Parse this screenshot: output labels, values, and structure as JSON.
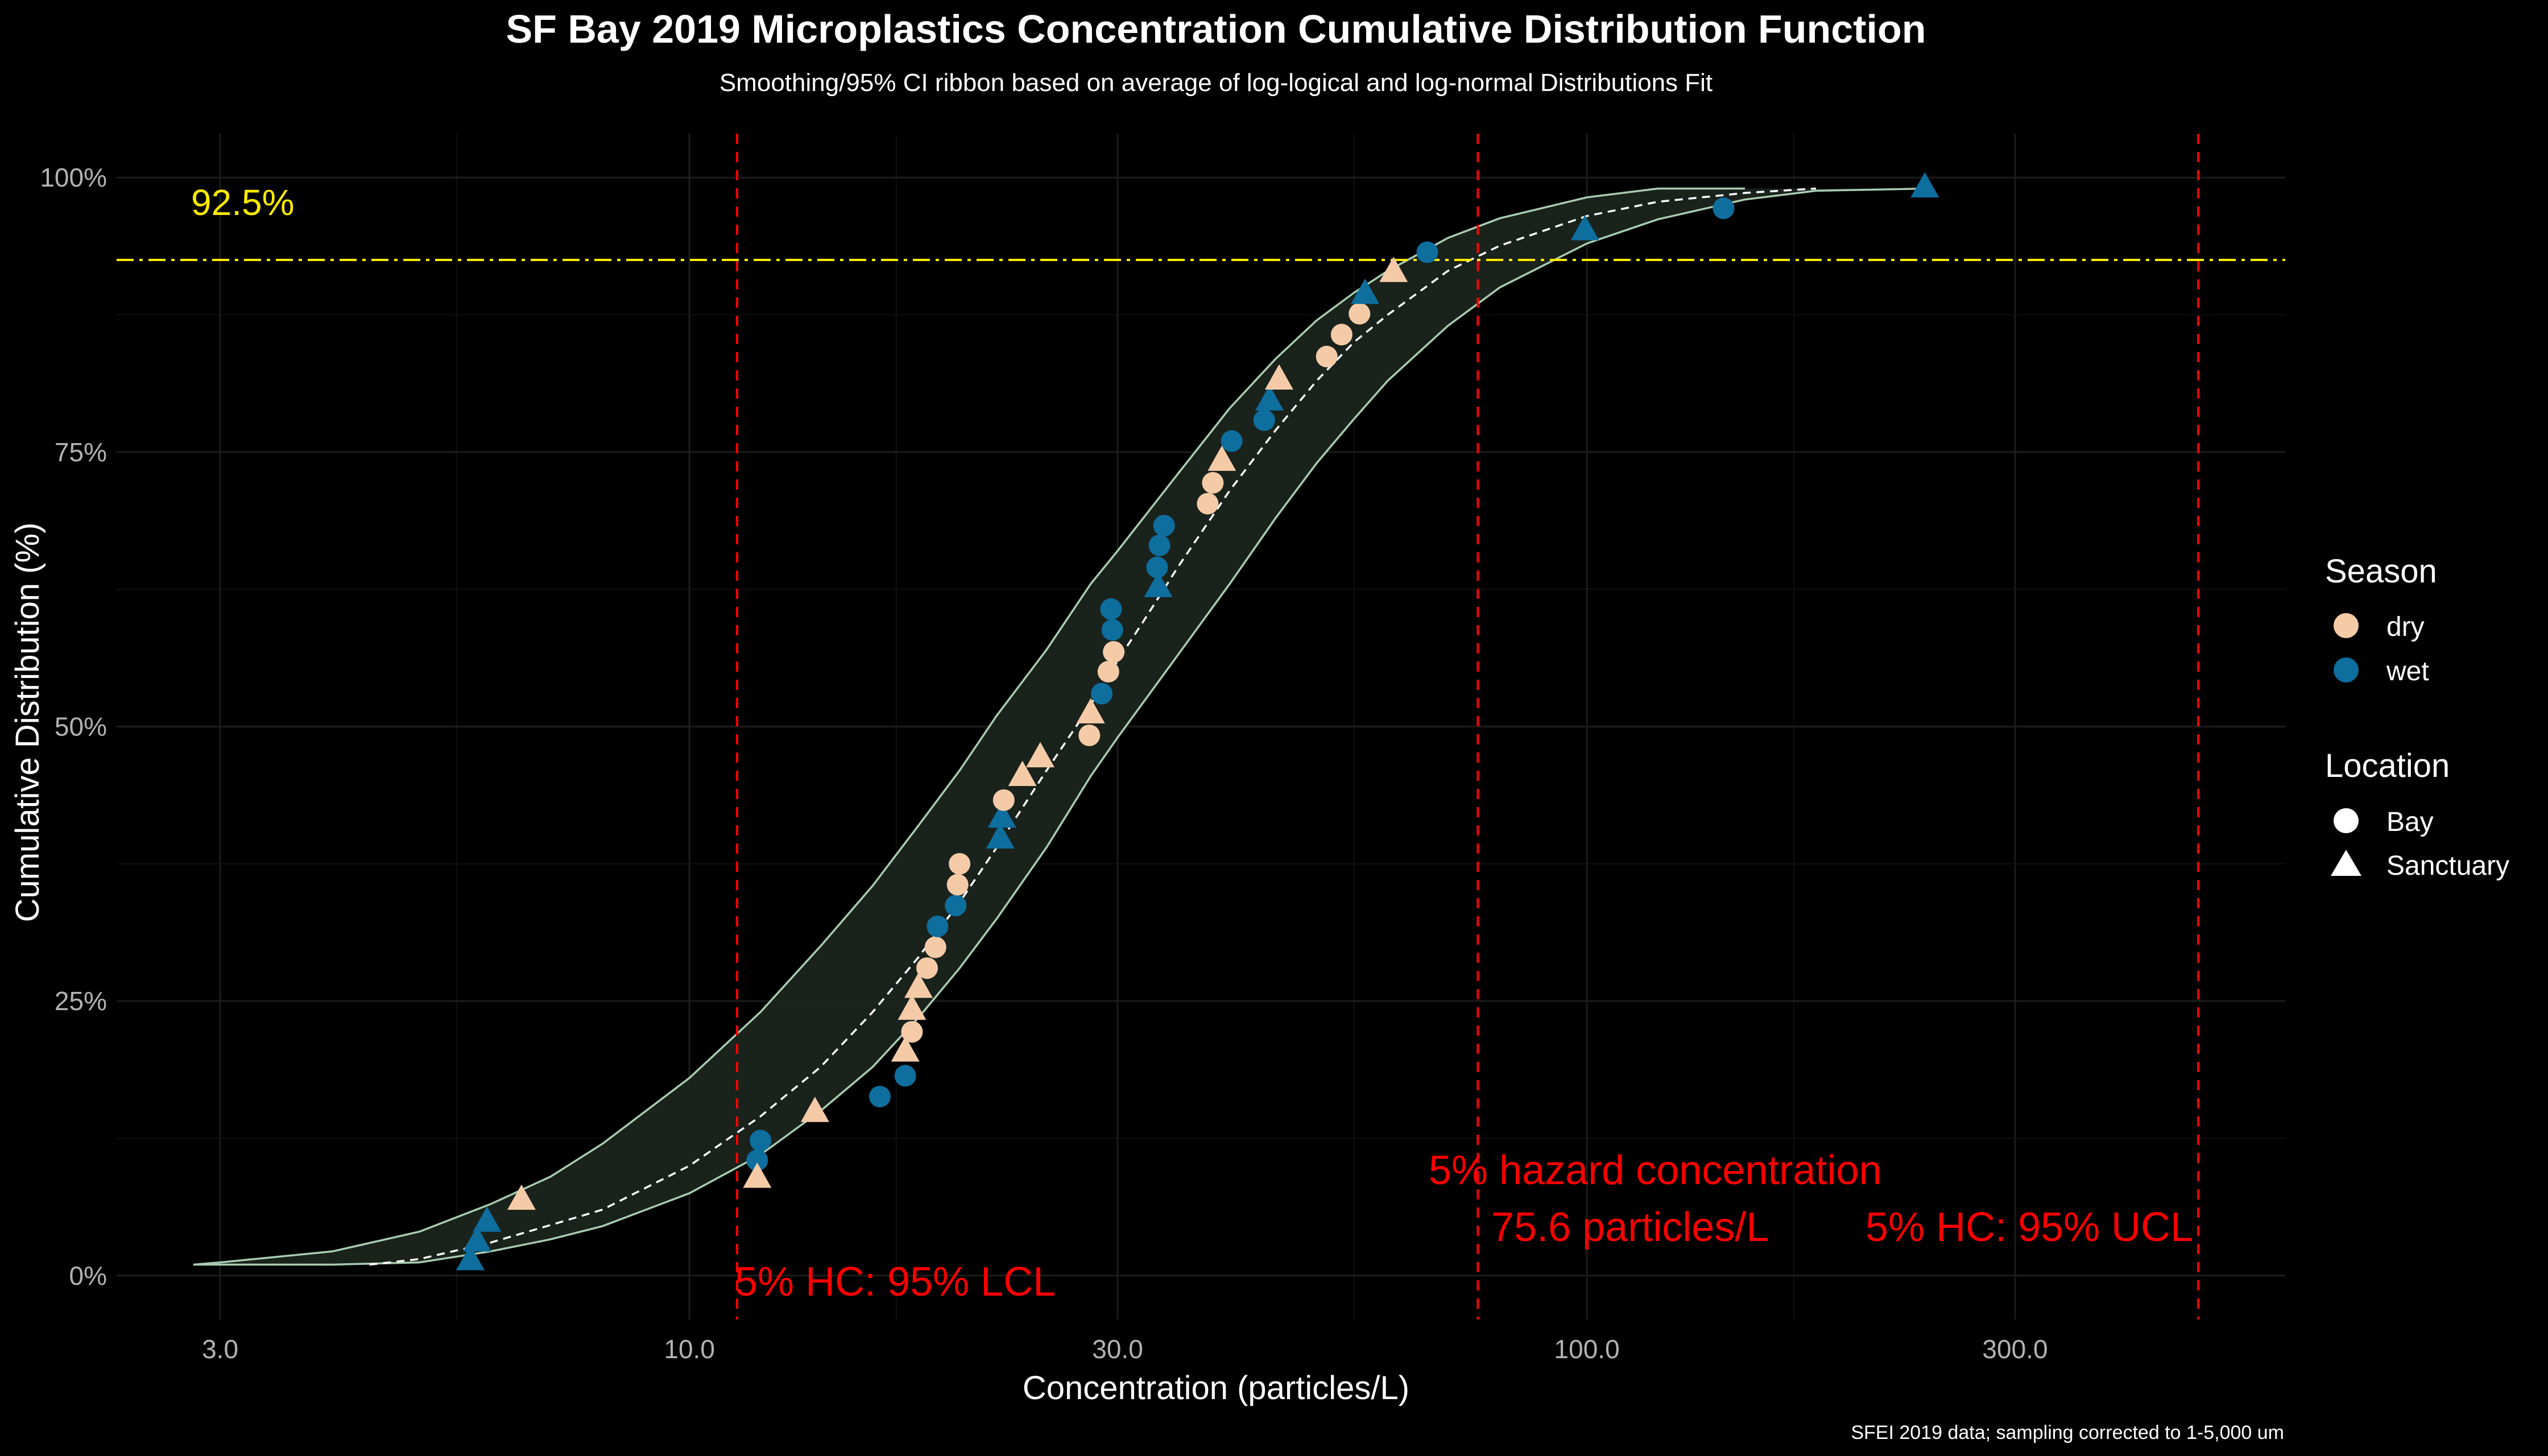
{
  "chart_data": {
    "type": "scatter",
    "title": "SF Bay 2019 Microplastics Concentration Cumulative Distribution Function",
    "subtitle": "Smoothing/95% CI ribbon based on average of log-logical and log-normal Distributions Fit",
    "xlabel": "Concentration (particles/L)",
    "ylabel": "Cumulative Distribution (%)",
    "caption": "SFEI 2019 data; sampling corrected to 1-5,000 um",
    "x_scale": "log10",
    "xlim": [
      2.3,
      600
    ],
    "ylim": [
      -4,
      104
    ],
    "x_ticks": [
      {
        "value": 3,
        "label": "3.0"
      },
      {
        "value": 10,
        "label": "10.0"
      },
      {
        "value": 30,
        "label": "30.0"
      },
      {
        "value": 100,
        "label": "100.0"
      },
      {
        "value": 300,
        "label": "300.0"
      }
    ],
    "y_ticks": [
      {
        "value": 0,
        "label": "0%"
      },
      {
        "value": 25,
        "label": "25%"
      },
      {
        "value": 50,
        "label": "50%"
      },
      {
        "value": 75,
        "label": "75%"
      },
      {
        "value": 100,
        "label": "100%"
      }
    ],
    "grid": true,
    "legend": {
      "position": "right",
      "season_title": "Season",
      "season": [
        {
          "name": "dry",
          "color": "#F5CBA7"
        },
        {
          "name": "wet",
          "color": "#0E6E9E"
        }
      ],
      "location_title": "Location",
      "location": [
        {
          "name": "Bay",
          "shape": "circle"
        },
        {
          "name": "Sanctuary",
          "shape": "triangle"
        }
      ]
    },
    "threshold_line": {
      "y": 92.5,
      "label": "92.5%",
      "color": "#FFEB00"
    },
    "vertical_lines": [
      {
        "x": 11.3,
        "label": "5% HC: 95% LCL"
      },
      {
        "x": 75.6,
        "label": "5% hazard concentration",
        "label2": "75.6 particles/L"
      },
      {
        "x": 480,
        "label": "5% HC: 95% UCL"
      }
    ],
    "vline_color": "#FF0000",
    "fit_curve": {
      "x": [
        4.4,
        5,
        6,
        7,
        8,
        10,
        12,
        14,
        16,
        18,
        20,
        22,
        25,
        28,
        30,
        32,
        35,
        40,
        45,
        50,
        55,
        60,
        70,
        80,
        100,
        120,
        150,
        180
      ],
      "y": [
        1,
        1.5,
        3,
        4.6,
        6,
        10,
        14.5,
        19,
        24,
        29,
        34,
        39,
        46,
        52,
        56,
        59.5,
        64.5,
        71.5,
        77,
        81.5,
        85,
        87.5,
        91.5,
        93.8,
        96.5,
        97.8,
        98.6,
        99
      ]
    },
    "ribbon_upper": {
      "x": [
        2.8,
        3,
        4,
        5,
        6,
        7,
        8,
        10,
        12,
        14,
        16,
        18,
        20,
        22,
        25,
        28,
        30,
        35,
        40,
        45,
        50,
        55,
        60,
        70,
        80,
        100,
        120,
        150
      ],
      "y": [
        1,
        1.2,
        2.2,
        4,
        6.5,
        9,
        12,
        18,
        24,
        30,
        35.5,
        41,
        46,
        51,
        57,
        63,
        66,
        73,
        79,
        83.5,
        87,
        89.5,
        91.5,
        94.5,
        96.3,
        98.2,
        99,
        99
      ]
    },
    "ribbon_lower": {
      "x": [
        2.8,
        3,
        4,
        5,
        6,
        7,
        8,
        10,
        12,
        14,
        16,
        18,
        20,
        22,
        25,
        28,
        30,
        35,
        40,
        45,
        50,
        55,
        60,
        70,
        80,
        100,
        120,
        150,
        180,
        240
      ],
      "y": [
        1,
        1,
        1,
        1.2,
        2.2,
        3.3,
        4.5,
        7.5,
        11,
        15,
        19,
        23.5,
        28,
        32.5,
        39,
        45.5,
        49,
        56.5,
        63,
        69,
        74,
        78,
        81.5,
        86.5,
        90,
        94,
        96.2,
        98,
        98.8,
        99
      ]
    },
    "points": [
      {
        "x": 5.7,
        "y": 1.5,
        "season": "wet",
        "location": "Sanctuary"
      },
      {
        "x": 5.8,
        "y": 3.2,
        "season": "wet",
        "location": "Sanctuary"
      },
      {
        "x": 5.95,
        "y": 5,
        "season": "wet",
        "location": "Sanctuary"
      },
      {
        "x": 6.5,
        "y": 7,
        "season": "dry",
        "location": "Sanctuary"
      },
      {
        "x": 11.9,
        "y": 10.5,
        "season": "wet",
        "location": "Bay"
      },
      {
        "x": 12.0,
        "y": 12.3,
        "season": "wet",
        "location": "Bay"
      },
      {
        "x": 11.9,
        "y": 9,
        "season": "dry",
        "location": "Sanctuary"
      },
      {
        "x": 13.8,
        "y": 15,
        "season": "dry",
        "location": "Sanctuary"
      },
      {
        "x": 16.3,
        "y": 16.3,
        "season": "wet",
        "location": "Bay"
      },
      {
        "x": 17.4,
        "y": 18.2,
        "season": "wet",
        "location": "Bay"
      },
      {
        "x": 17.4,
        "y": 20.5,
        "season": "dry",
        "location": "Sanctuary"
      },
      {
        "x": 17.7,
        "y": 22.2,
        "season": "dry",
        "location": "Bay"
      },
      {
        "x": 17.7,
        "y": 24.3,
        "season": "dry",
        "location": "Sanctuary"
      },
      {
        "x": 18.0,
        "y": 26.3,
        "season": "dry",
        "location": "Sanctuary"
      },
      {
        "x": 18.4,
        "y": 28,
        "season": "dry",
        "location": "Bay"
      },
      {
        "x": 18.8,
        "y": 29.9,
        "season": "dry",
        "location": "Bay"
      },
      {
        "x": 18.9,
        "y": 31.8,
        "season": "wet",
        "location": "Bay"
      },
      {
        "x": 19.8,
        "y": 33.7,
        "season": "wet",
        "location": "Bay"
      },
      {
        "x": 19.9,
        "y": 35.6,
        "season": "dry",
        "location": "Bay"
      },
      {
        "x": 20.0,
        "y": 37.5,
        "season": "dry",
        "location": "Bay"
      },
      {
        "x": 22.2,
        "y": 39.9,
        "season": "wet",
        "location": "Sanctuary"
      },
      {
        "x": 22.3,
        "y": 41.8,
        "season": "wet",
        "location": "Sanctuary"
      },
      {
        "x": 22.4,
        "y": 43.3,
        "season": "dry",
        "location": "Bay"
      },
      {
        "x": 23.5,
        "y": 45.6,
        "season": "dry",
        "location": "Sanctuary"
      },
      {
        "x": 24.6,
        "y": 47.3,
        "season": "dry",
        "location": "Sanctuary"
      },
      {
        "x": 27.9,
        "y": 49.2,
        "season": "dry",
        "location": "Bay"
      },
      {
        "x": 28.0,
        "y": 51.3,
        "season": "dry",
        "location": "Sanctuary"
      },
      {
        "x": 28.8,
        "y": 53,
        "season": "wet",
        "location": "Bay"
      },
      {
        "x": 29.3,
        "y": 55,
        "season": "dry",
        "location": "Bay"
      },
      {
        "x": 29.7,
        "y": 56.8,
        "season": "dry",
        "location": "Bay"
      },
      {
        "x": 29.6,
        "y": 58.8,
        "season": "wet",
        "location": "Bay"
      },
      {
        "x": 29.5,
        "y": 60.7,
        "season": "wet",
        "location": "Bay"
      },
      {
        "x": 33.3,
        "y": 62.8,
        "season": "wet",
        "location": "Sanctuary"
      },
      {
        "x": 33.2,
        "y": 64.5,
        "season": "wet",
        "location": "Bay"
      },
      {
        "x": 33.4,
        "y": 66.5,
        "season": "wet",
        "location": "Bay"
      },
      {
        "x": 33.8,
        "y": 68.3,
        "season": "wet",
        "location": "Bay"
      },
      {
        "x": 37.8,
        "y": 70.3,
        "season": "dry",
        "location": "Bay"
      },
      {
        "x": 38.3,
        "y": 72.2,
        "season": "dry",
        "location": "Bay"
      },
      {
        "x": 39.2,
        "y": 74.3,
        "season": "dry",
        "location": "Sanctuary"
      },
      {
        "x": 40.2,
        "y": 76,
        "season": "wet",
        "location": "Bay"
      },
      {
        "x": 43.7,
        "y": 77.9,
        "season": "wet",
        "location": "Bay"
      },
      {
        "x": 44.3,
        "y": 79.8,
        "season": "wet",
        "location": "Sanctuary"
      },
      {
        "x": 45.4,
        "y": 81.7,
        "season": "dry",
        "location": "Sanctuary"
      },
      {
        "x": 51.3,
        "y": 83.7,
        "season": "dry",
        "location": "Bay"
      },
      {
        "x": 53.3,
        "y": 85.7,
        "season": "dry",
        "location": "Bay"
      },
      {
        "x": 55.8,
        "y": 87.6,
        "season": "dry",
        "location": "Bay"
      },
      {
        "x": 56.6,
        "y": 89.5,
        "season": "wet",
        "location": "Sanctuary"
      },
      {
        "x": 60.9,
        "y": 91.5,
        "season": "dry",
        "location": "Sanctuary"
      },
      {
        "x": 66.4,
        "y": 93.2,
        "season": "wet",
        "location": "Bay"
      },
      {
        "x": 99.5,
        "y": 95.3,
        "season": "wet",
        "location": "Sanctuary"
      },
      {
        "x": 142,
        "y": 97.2,
        "season": "wet",
        "location": "Bay"
      },
      {
        "x": 238,
        "y": 99.2,
        "season": "wet",
        "location": "Sanctuary"
      }
    ]
  }
}
